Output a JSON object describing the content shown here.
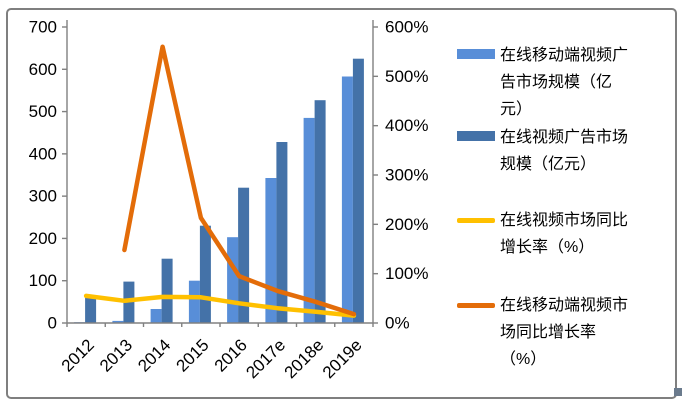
{
  "chart_data": {
    "type": "combo (bar + line)",
    "categories": [
      "2012",
      "2013",
      "2014",
      "2015",
      "2016",
      "2017e",
      "2018e",
      "2019e"
    ],
    "series": [
      {
        "name": "在线移动端视频广告市场规模（亿元）",
        "type": "bar",
        "axis": "left",
        "color": "#588ED8",
        "values": [
          2,
          5,
          33,
          100,
          203,
          343,
          485,
          583
        ]
      },
      {
        "name": "在线视频广告市场规模（亿元）",
        "type": "bar",
        "axis": "left",
        "color": "#4472A8",
        "values": [
          64,
          98,
          152,
          230,
          320,
          428,
          527,
          625
        ]
      },
      {
        "name": "在线视频市场同比增长率（%）",
        "type": "line",
        "axis": "right",
        "color": "#FFC000",
        "values": [
          55,
          45,
          53,
          52,
          40,
          30,
          23,
          15
        ]
      },
      {
        "name": "在线移动端视频市场同比增长率（%）",
        "type": "line",
        "axis": "right",
        "color": "#E36C09",
        "values": [
          null,
          148,
          560,
          213,
          95,
          65,
          43,
          18
        ]
      }
    ],
    "left_axis": {
      "min": 0,
      "max": 700,
      "step": 100,
      "tick_labels": [
        "0",
        "100",
        "200",
        "300",
        "400",
        "500",
        "600",
        "700"
      ]
    },
    "right_axis": {
      "min": 0,
      "max": 600,
      "step": 100,
      "tick_labels": [
        "0%",
        "100%",
        "200%",
        "300%",
        "400%",
        "500%",
        "600%"
      ]
    },
    "title": "",
    "xlabel": "",
    "ylabel": "",
    "legend_position": "right",
    "grid": false,
    "colors": {
      "axis": "#808080",
      "tick_text": "#000000",
      "border": "#7F7F7F",
      "background": "#FFFFFF"
    }
  }
}
